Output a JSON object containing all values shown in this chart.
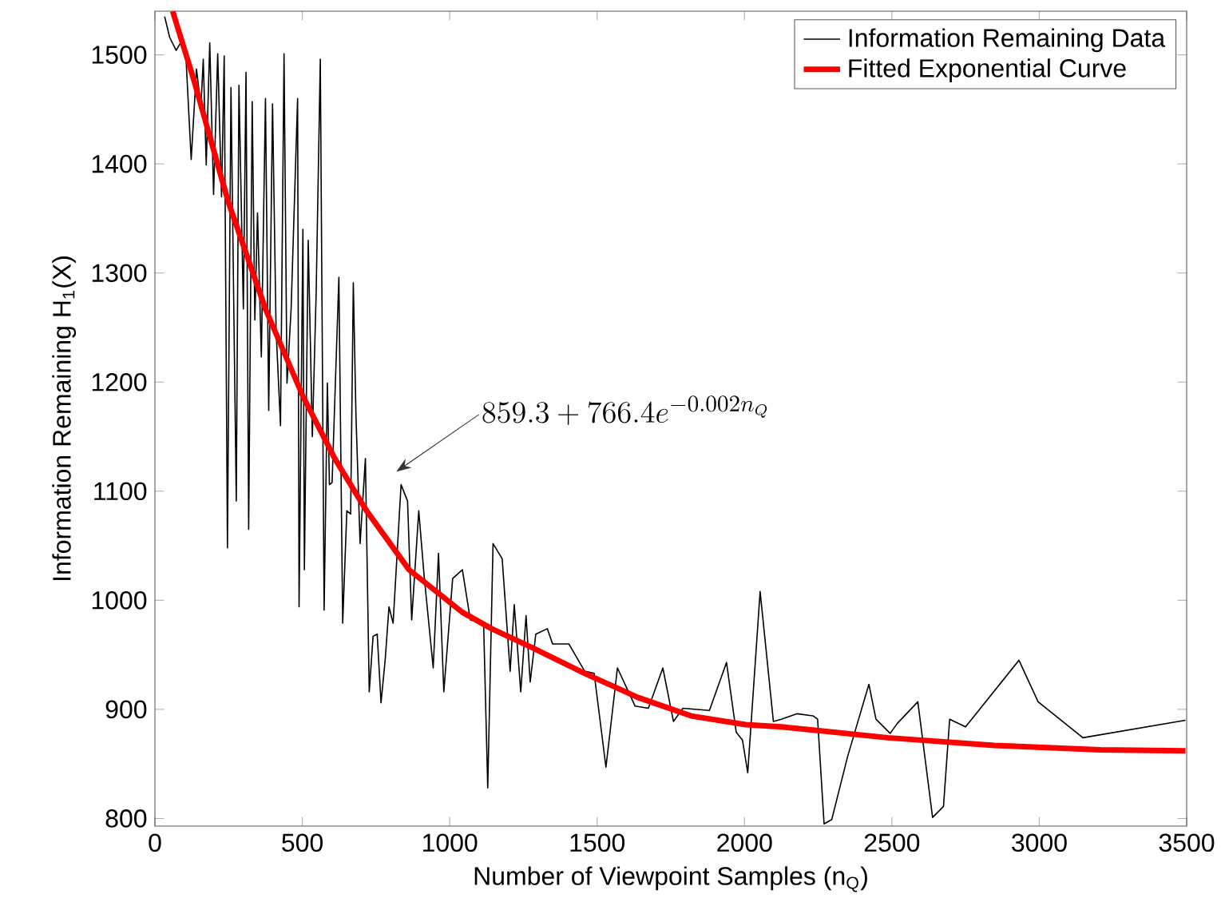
{
  "chart_data": {
    "type": "line",
    "xlabel": "Number of Viewpoint Samples (n$_{Q}$)",
    "ylabel": "Information Remaining H$_{1}$(X)",
    "xlim": [
      0,
      3500
    ],
    "ylim": [
      793,
      1540
    ],
    "xticks": [
      0,
      500,
      1000,
      1500,
      2000,
      2500,
      3000,
      3500
    ],
    "yticks": [
      800,
      900,
      1000,
      1100,
      1200,
      1300,
      1400,
      1500
    ],
    "grid": false,
    "legend": "top right",
    "marker": "none",
    "annotations": [
      "859.3+766.4e^{-0.002n_Q}"
    ],
    "series": [
      {
        "name": "Information Remaining Data",
        "color": "#000000",
        "x": [
          33,
          50,
          72,
          87,
          105,
          123,
          141,
          156,
          164,
          174,
          186,
          199,
          213,
          226,
          235,
          246,
          258,
          276,
          285,
          300,
          309,
          318,
          330,
          339,
          348,
          361,
          375,
          386,
          399,
          411,
          426,
          438,
          448,
          462,
          484,
          489,
          502,
          507,
          520,
          534,
          547,
          561,
          574,
          585,
          592,
          601,
          624,
          637,
          651,
          664,
          673,
          682,
          696,
          714,
          727,
          740,
          754,
          767,
          781,
          794,
          808,
          835,
          857,
          871,
          895,
          913,
          944,
          962,
          980,
          1010,
          1043,
          1070,
          1115,
          1129,
          1147,
          1178,
          1205,
          1219,
          1241,
          1259,
          1273,
          1292,
          1331,
          1349,
          1404,
          1458,
          1490,
          1530,
          1569,
          1629,
          1674,
          1723,
          1759,
          1791,
          1881,
          1939,
          1972,
          1993,
          2011,
          2053,
          2098,
          2125,
          2179,
          2233,
          2248,
          2270,
          2296,
          2350,
          2422,
          2446,
          2494,
          2518,
          2588,
          2638,
          2675,
          2696,
          2750,
          2931,
          2996,
          3148,
          3496
        ],
        "values": [
          1535,
          1516,
          1504,
          1511,
          1499,
          1404,
          1487,
          1452,
          1496,
          1399,
          1511,
          1372,
          1501,
          1370,
          1499,
          1048,
          1470,
          1091,
          1472,
          1267,
          1484,
          1065,
          1457,
          1257,
          1355,
          1223,
          1460,
          1174,
          1455,
          1248,
          1160,
          1501,
          1199,
          1267,
          1460,
          994,
          1340,
          1028,
          1330,
          1150,
          1282,
          1496,
          991,
          1199,
          1106,
          1108,
          1296,
          979,
          1082,
          1079,
          1291,
          1169,
          1052,
          1130,
          916,
          967,
          969,
          906,
          945,
          994,
          979,
          1106,
          1091,
          982,
          1082,
          1023,
          938,
          1043,
          916,
          1020,
          1028,
          982,
          979,
          828,
          1052,
          1038,
          935,
          996,
          916,
          986,
          925,
          969,
          974,
          960,
          960,
          935,
          933,
          847,
          938,
          903,
          901,
          938,
          889,
          901,
          899,
          943,
          879,
          872,
          842,
          1008,
          889,
          891,
          896,
          894,
          891,
          795,
          799,
          857,
          923,
          891,
          878,
          887,
          907,
          801,
          811,
          891,
          884,
          945,
          907,
          874,
          890
        ]
      },
      {
        "name": "Fitted Exponential Curve",
        "color": "#ff0000",
        "x": [
          60,
          132,
          249,
          375,
          502,
          610,
          718,
          862,
          1043,
          1142,
          1277,
          1458,
          1638,
          1819,
          2004,
          2125,
          2486,
          2847,
          3207,
          3496
        ],
        "values": [
          1540,
          1477,
          1365,
          1267,
          1187,
          1130,
          1082,
          1028,
          989,
          974,
          957,
          933,
          911,
          894,
          886,
          884,
          874,
          867,
          863,
          862
        ]
      }
    ]
  }
}
